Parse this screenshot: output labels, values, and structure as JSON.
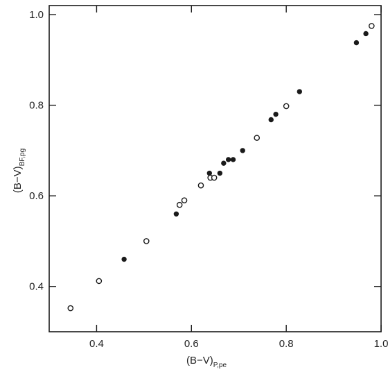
{
  "chart_data": {
    "type": "scatter",
    "title": "",
    "xlabel": {
      "main": "(B−V)",
      "sub": "P,pe"
    },
    "ylabel": {
      "main": "(B−V)",
      "sub": "BF,pg"
    },
    "xlim": [
      0.3,
      1.0
    ],
    "ylim": [
      0.3,
      1.02
    ],
    "x_ticks": [
      0.4,
      0.6,
      0.8,
      1.0
    ],
    "x_tick_labels": [
      "0.4",
      "0.6",
      "0.8",
      "1.0"
    ],
    "y_ticks": [
      0.4,
      0.6,
      0.8,
      1.0
    ],
    "y_tick_labels": [
      "0.4",
      "0.6",
      "0.8",
      "1.0"
    ],
    "grid": false,
    "legend": "none",
    "series": [
      {
        "marker": "open-circle",
        "points": [
          {
            "x": 0.345,
            "y": 0.352
          },
          {
            "x": 0.405,
            "y": 0.412
          },
          {
            "x": 0.505,
            "y": 0.5
          },
          {
            "x": 0.575,
            "y": 0.58
          },
          {
            "x": 0.585,
            "y": 0.59
          },
          {
            "x": 0.62,
            "y": 0.623
          },
          {
            "x": 0.64,
            "y": 0.64
          },
          {
            "x": 0.648,
            "y": 0.64
          },
          {
            "x": 0.738,
            "y": 0.728
          },
          {
            "x": 0.8,
            "y": 0.798
          },
          {
            "x": 0.98,
            "y": 0.975
          }
        ]
      },
      {
        "marker": "filled-circle",
        "points": [
          {
            "x": 0.458,
            "y": 0.46
          },
          {
            "x": 0.568,
            "y": 0.56
          },
          {
            "x": 0.638,
            "y": 0.65
          },
          {
            "x": 0.66,
            "y": 0.65
          },
          {
            "x": 0.668,
            "y": 0.672
          },
          {
            "x": 0.678,
            "y": 0.68
          },
          {
            "x": 0.688,
            "y": 0.68
          },
          {
            "x": 0.708,
            "y": 0.7
          },
          {
            "x": 0.768,
            "y": 0.768
          },
          {
            "x": 0.778,
            "y": 0.78
          },
          {
            "x": 0.828,
            "y": 0.83
          },
          {
            "x": 0.948,
            "y": 0.938
          },
          {
            "x": 0.968,
            "y": 0.958
          }
        ]
      }
    ],
    "colors": {
      "ink": "#1a1a1a",
      "background": "#ffffff"
    }
  }
}
